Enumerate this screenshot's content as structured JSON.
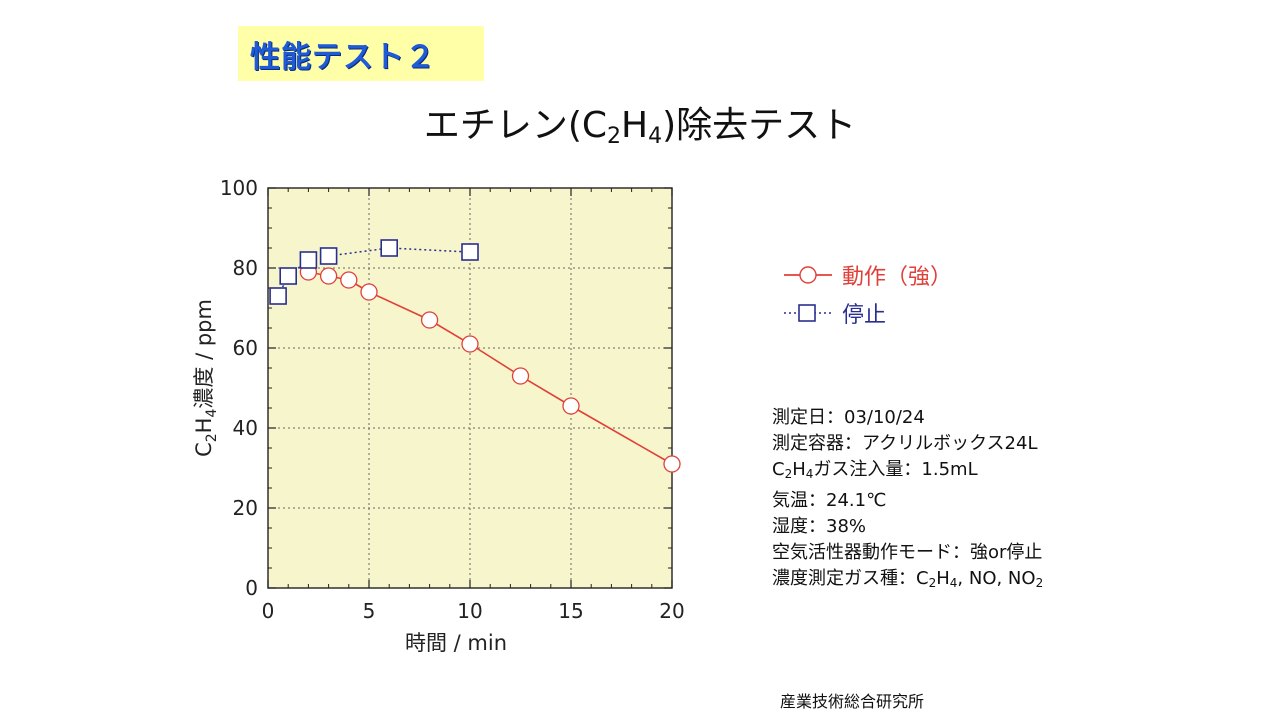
{
  "slide": {
    "badge": "性能テスト２",
    "title_pre": "エチレン(C",
    "title_sub1": "2",
    "title_mid": "H",
    "title_sub2": "4",
    "title_post": ")除去テスト",
    "footer": "産業技術総合研究所"
  },
  "legend": {
    "items": [
      {
        "label": "動作（強）",
        "color": "#e0403a"
      },
      {
        "label": "停止",
        "color": "#2a2f8f"
      }
    ]
  },
  "info": {
    "line1": "測定日：03/10/24",
    "line2": "測定容器：アクリルボックス24L",
    "line3_a": "C",
    "line3_s1": "2",
    "line3_b": "H",
    "line3_s2": "4",
    "line3_c": "ガス注入量：1.5mL",
    "line4": "気温：24.1℃",
    "line5": "湿度：38%",
    "line6": "空気活性器動作モード：強or停止",
    "line7_a": "濃度測定ガス種：C",
    "line7_s1": "2",
    "line7_b": "H",
    "line7_s2": "4",
    "line7_c": ", NO, NO",
    "line7_s3": "2"
  },
  "chart_data": {
    "type": "line",
    "xlabel": "時間 / min",
    "ylabel_parts": [
      "C",
      "2",
      "H",
      "4",
      "濃度 / ppm"
    ],
    "xlim": [
      0,
      20
    ],
    "ylim": [
      0,
      100
    ],
    "xticks": [
      0,
      5,
      10,
      15,
      20
    ],
    "yticks": [
      0,
      20,
      40,
      60,
      80,
      100
    ],
    "grid": true,
    "plot_background": "#f7f5cc",
    "series": [
      {
        "name": "動作（強）",
        "marker": "circle",
        "line": "solid",
        "color": "#e0403a",
        "x": [
          2,
          3,
          4,
          5,
          8,
          10,
          12.5,
          15,
          20
        ],
        "y": [
          79,
          78,
          77,
          74,
          67,
          61,
          53,
          45.5,
          31
        ]
      },
      {
        "name": "停止",
        "marker": "square",
        "line": "dotted",
        "color": "#2a2f8f",
        "x": [
          0.5,
          1,
          2,
          3,
          6,
          10
        ],
        "y": [
          73,
          78,
          82,
          83,
          85,
          84
        ]
      }
    ]
  }
}
